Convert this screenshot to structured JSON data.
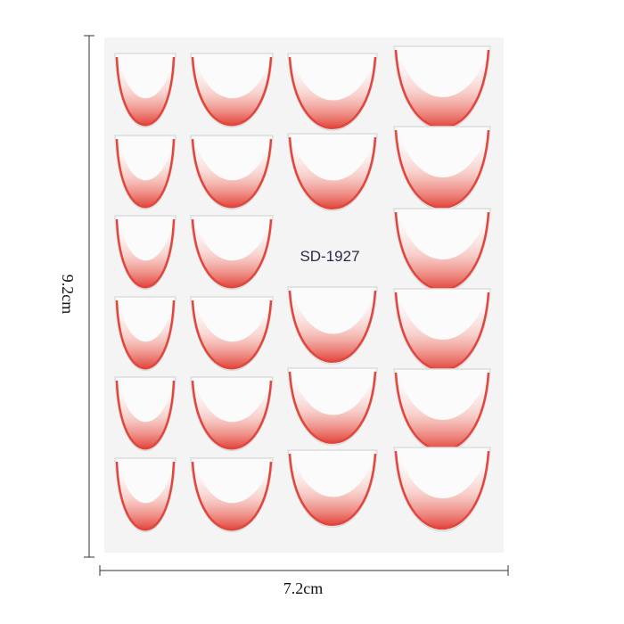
{
  "product_code": "SD-1927",
  "height_label": "9.2cm",
  "width_label": "7.2cm"
}
